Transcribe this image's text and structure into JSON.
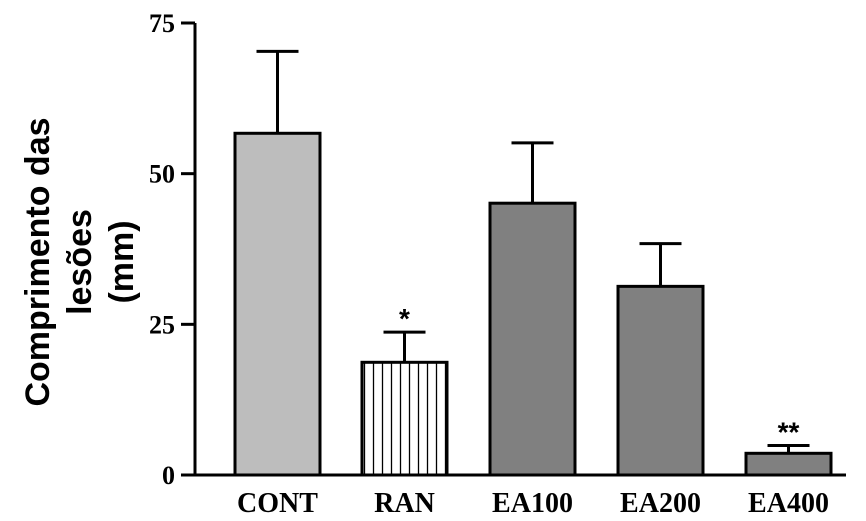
{
  "chart_data": {
    "type": "bar",
    "ylabel_lines": [
      "Comprimento das",
      "lesões",
      "(mm)"
    ],
    "ylim": [
      0,
      75
    ],
    "yticks": [
      "0",
      "25",
      "50",
      "75"
    ],
    "ytick_values": [
      0,
      25,
      50,
      75
    ],
    "categories": [
      "CONT",
      "RAN",
      "EA100",
      "EA200",
      "EA400"
    ],
    "values": [
      56.7,
      18.7,
      45.1,
      31.3,
      3.6
    ],
    "errors": [
      13.6,
      5.0,
      10.0,
      7.1,
      1.3
    ],
    "annotations": [
      "",
      "*",
      "",
      "",
      "**"
    ],
    "bar_colors": [
      "#bdbdbd",
      "#ffffff",
      "#808080",
      "#808080",
      "#808080"
    ],
    "bar_patterns": [
      "solid",
      "vertical-lines",
      "solid",
      "solid",
      "solid"
    ],
    "grid": false,
    "legend": "none"
  }
}
